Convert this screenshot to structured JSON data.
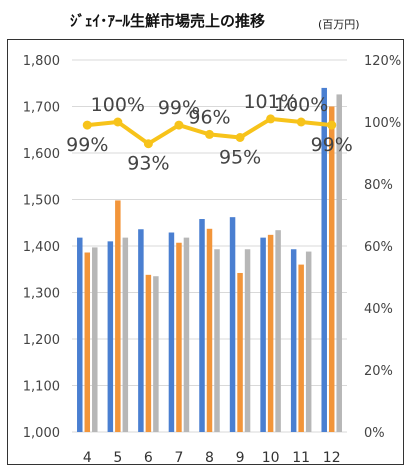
{
  "header": {
    "title": "ｼﾞｪｲ･ｱｰﾙ生鮮市場売上の推移",
    "unit": "(百万円)"
  },
  "colors": {
    "series_a": "#4a7fd1",
    "series_b": "#f2953a",
    "series_c": "#b7b7b7",
    "line": "#f7c31a",
    "grid": "#d9d9d9"
  },
  "chart_data": {
    "type": "bar",
    "categories": [
      "4",
      "5",
      "6",
      "7",
      "8",
      "9",
      "10",
      "11",
      "12"
    ],
    "series": [
      {
        "values": [
          1418,
          1410,
          1436,
          1429,
          1458,
          1462,
          1418,
          1393,
          1740
        ]
      },
      {
        "values": [
          1386,
          1498,
          1338,
          1407,
          1437,
          1342,
          1424,
          1360,
          1700
        ]
      },
      {
        "values": [
          1397,
          1418,
          1335,
          1418,
          1393,
          1393,
          1434,
          1388,
          1726
        ]
      }
    ],
    "line_series": {
      "type": "line",
      "axis": "right",
      "values": [
        99,
        100,
        93,
        99,
        96,
        95,
        101,
        100,
        99
      ],
      "labels": [
        "99%",
        "100%",
        "93%",
        "99%",
        "96%",
        "95%",
        "101%",
        "100%",
        "99%"
      ]
    },
    "y_left": {
      "lim": [
        1000,
        1800
      ],
      "ticks": [
        "1,000",
        "1,100",
        "1,200",
        "1,300",
        "1,400",
        "1,500",
        "1,600",
        "1,700",
        "1,800"
      ]
    },
    "y_right": {
      "lim": [
        0,
        120
      ],
      "ticks": [
        "0%",
        "20%",
        "40%",
        "60%",
        "80%",
        "100%",
        "120%"
      ]
    },
    "grid": true
  }
}
